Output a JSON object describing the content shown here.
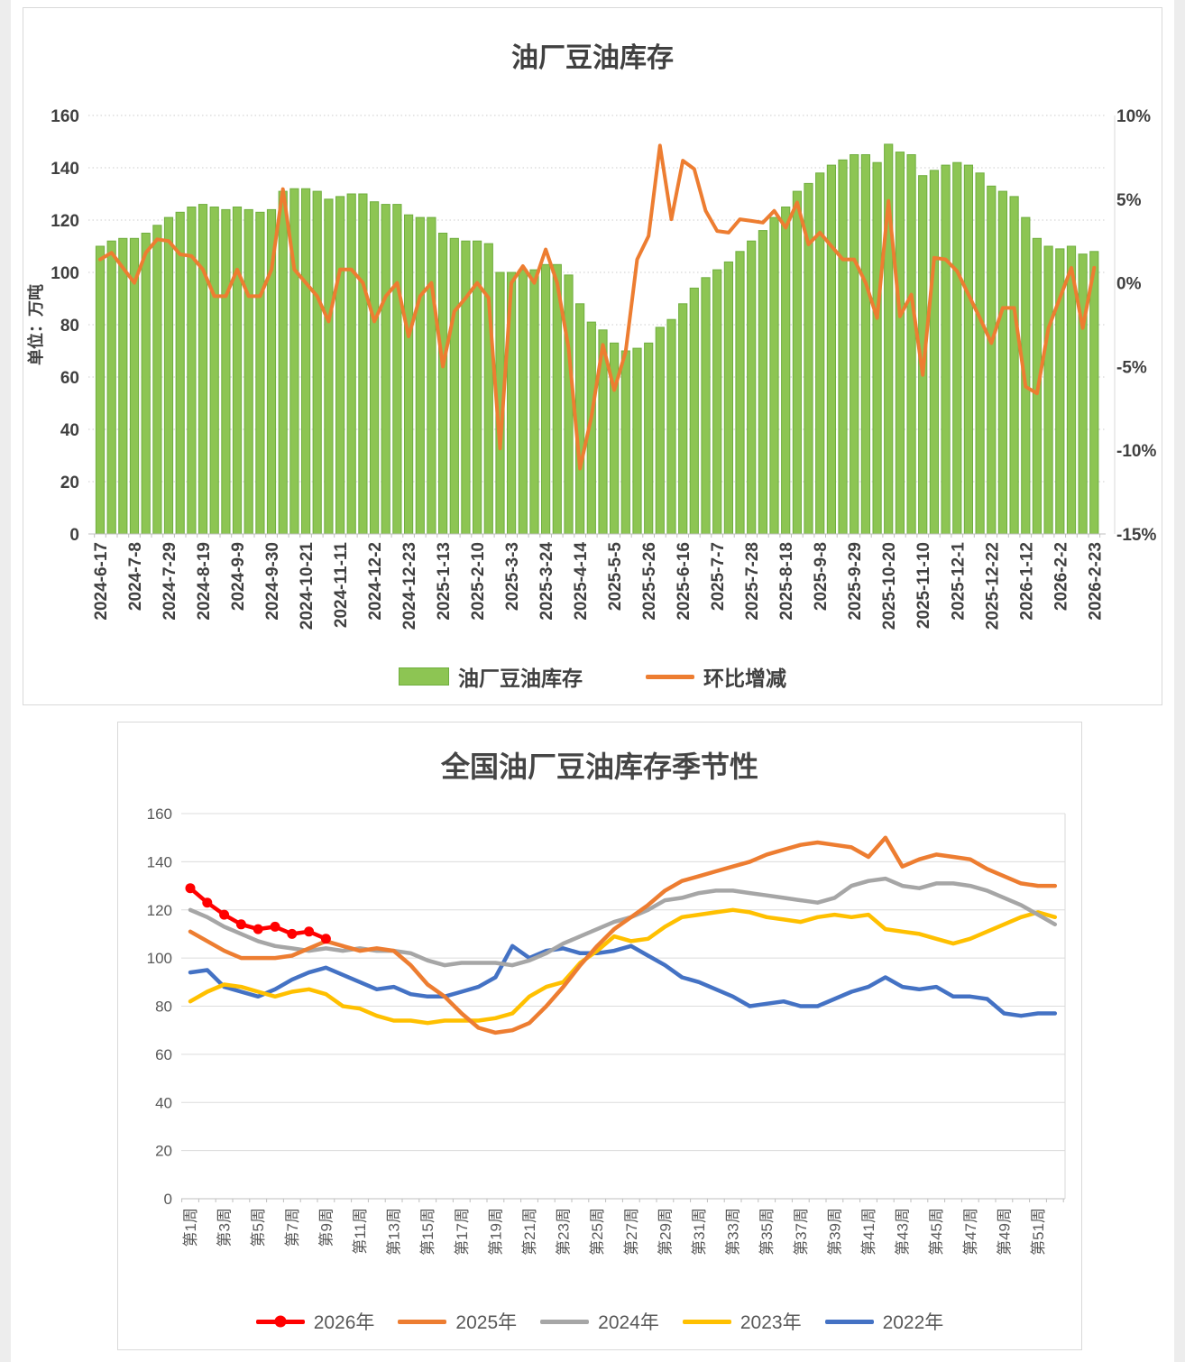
{
  "page": {
    "background": "#ffffff"
  },
  "chart_data": [
    {
      "type": "bar",
      "title": "油厂豆油库存",
      "ylabel": "单位：万吨",
      "ylim": [
        0,
        160
      ],
      "y_ticks": [
        0,
        20,
        40,
        60,
        80,
        100,
        120,
        140,
        160
      ],
      "y2lim": [
        -15,
        10
      ],
      "y2_ticks": [
        "10%",
        "5%",
        "0%",
        "-5%",
        "-10%",
        "-15%"
      ],
      "legend": [
        "油厂豆油库存",
        "环比增减"
      ],
      "bar_color": "#8DC553",
      "bar_edge": "#6FAE3E",
      "line_color": "#ED7D31",
      "grid": "dotted",
      "label_every": 3,
      "categories": [
        "2024-6-17",
        "2024-6-24",
        "2024-7-1",
        "2024-7-8",
        "2024-7-15",
        "2024-7-22",
        "2024-7-29",
        "2024-8-5",
        "2024-8-12",
        "2024-8-19",
        "2024-8-26",
        "2024-9-2",
        "2024-9-9",
        "2024-9-16",
        "2024-9-23",
        "2024-9-30",
        "2024-10-7",
        "2024-10-14",
        "2024-10-21",
        "2024-10-28",
        "2024-11-4",
        "2024-11-11",
        "2024-11-18",
        "2024-11-25",
        "2024-12-2",
        "2024-12-9",
        "2024-12-16",
        "2024-12-23",
        "2024-12-30",
        "2025-1-6",
        "2025-1-13",
        "2025-1-20",
        "2025-1-27",
        "2025-2-10",
        "2025-2-17",
        "2025-2-24",
        "2025-3-3",
        "2025-3-10",
        "2025-3-17",
        "2025-3-24",
        "2025-3-31",
        "2025-4-7",
        "2025-4-14",
        "2025-4-21",
        "2025-4-28",
        "2025-5-5",
        "2025-5-12",
        "2025-5-19",
        "2025-5-26",
        "2025-6-2",
        "2025-6-9",
        "2025-6-16",
        "2025-6-23",
        "2025-6-30",
        "2025-7-7",
        "2025-7-14",
        "2025-7-21",
        "2025-7-28",
        "2025-8-4",
        "2025-8-11",
        "2025-8-18",
        "2025-8-25",
        "2025-9-1",
        "2025-9-8",
        "2025-9-15",
        "2025-9-22",
        "2025-9-29",
        "2025-10-6",
        "2025-10-13",
        "2025-10-20",
        "2025-10-27",
        "2025-11-3",
        "2025-11-10",
        "2025-11-17",
        "2025-11-24",
        "2025-12-1",
        "2025-12-8",
        "2025-12-15",
        "2025-12-22",
        "2025-12-29",
        "2026-1-5",
        "2026-1-12",
        "2026-1-19",
        "2026-1-26",
        "2026-2-2",
        "2026-2-9",
        "2026-2-16",
        "2026-2-23"
      ],
      "bars": [
        110,
        112,
        113,
        113,
        115,
        118,
        121,
        123,
        125,
        126,
        125,
        124,
        125,
        124,
        123,
        124,
        131,
        132,
        132,
        131,
        128,
        129,
        130,
        130,
        127,
        126,
        126,
        122,
        121,
        121,
        115,
        113,
        112,
        112,
        111,
        100,
        100,
        101,
        101,
        103,
        103,
        99,
        88,
        81,
        78,
        73,
        70,
        71,
        73,
        79,
        82,
        88,
        94,
        98,
        101,
        104,
        108,
        112,
        116,
        121,
        125,
        131,
        134,
        138,
        141,
        143,
        145,
        145,
        142,
        149,
        146,
        145,
        137,
        139,
        141,
        142,
        141,
        138,
        133,
        131,
        129,
        121,
        113,
        110,
        109,
        110,
        107,
        108
      ],
      "pct_change": [
        1.4,
        1.8,
        0.9,
        0.0,
        1.8,
        2.6,
        2.5,
        1.7,
        1.6,
        0.8,
        -0.8,
        -0.8,
        0.8,
        -0.8,
        -0.8,
        0.8,
        5.6,
        0.8,
        0.0,
        -0.8,
        -2.3,
        0.8,
        0.8,
        0.0,
        -2.3,
        -0.8,
        0.0,
        -3.2,
        -0.8,
        0.0,
        -5.0,
        -1.7,
        -0.9,
        0.0,
        -0.9,
        -9.9,
        0.0,
        1.0,
        0.0,
        2.0,
        0.0,
        -3.9,
        -11.1,
        -8.0,
        -3.7,
        -6.4,
        -4.1,
        1.4,
        2.8,
        8.2,
        3.8,
        7.3,
        6.8,
        4.3,
        3.1,
        3.0,
        3.8,
        3.7,
        3.6,
        4.3,
        3.3,
        4.8,
        2.3,
        3.0,
        2.2,
        1.4,
        1.4,
        0.0,
        -2.1,
        4.9,
        -2.0,
        -0.7,
        -5.5,
        1.5,
        1.4,
        0.7,
        -0.7,
        -2.1,
        -3.6,
        -1.5,
        -1.5,
        -6.2,
        -6.6,
        -2.7,
        -0.9,
        0.9,
        -2.7,
        0.9
      ]
    },
    {
      "type": "line",
      "title": "全国油厂豆油库存季节性",
      "ylim": [
        0,
        160
      ],
      "y_ticks": [
        0,
        20,
        40,
        60,
        80,
        100,
        120,
        140,
        160
      ],
      "grid": "solid",
      "label_every": 2,
      "categories": [
        "第1周",
        "第2周",
        "第3周",
        "第4周",
        "第5周",
        "第6周",
        "第7周",
        "第8周",
        "第9周",
        "第10周",
        "第11周",
        "第12周",
        "第13周",
        "第14周",
        "第15周",
        "第16周",
        "第17周",
        "第18周",
        "第19周",
        "第20周",
        "第21周",
        "第22周",
        "第23周",
        "第24周",
        "第25周",
        "第26周",
        "第27周",
        "第28周",
        "第29周",
        "第30周",
        "第31周",
        "第32周",
        "第33周",
        "第34周",
        "第35周",
        "第36周",
        "第37周",
        "第38周",
        "第39周",
        "第40周",
        "第41周",
        "第42周",
        "第43周",
        "第44周",
        "第45周",
        "第46周",
        "第47周",
        "第48周",
        "第49周",
        "第50周",
        "第51周",
        "第52周"
      ],
      "series": [
        {
          "name": "2026年",
          "color": "#FF0000",
          "marker": true,
          "values": [
            129,
            123,
            118,
            114,
            112,
            113,
            110,
            111,
            108
          ]
        },
        {
          "name": "2025年",
          "color": "#ED7D31",
          "values": [
            111,
            107,
            103,
            100,
            100,
            100,
            101,
            104,
            107,
            105,
            103,
            104,
            103,
            97,
            89,
            84,
            77,
            71,
            69,
            70,
            73,
            80,
            88,
            97,
            105,
            112,
            117,
            122,
            128,
            132,
            134,
            136,
            138,
            140,
            143,
            145,
            147,
            148,
            147,
            146,
            142,
            150,
            138,
            141,
            143,
            142,
            141,
            137,
            134,
            131,
            130,
            130
          ]
        },
        {
          "name": "2024年",
          "color": "#A6A6A6",
          "values": [
            120,
            117,
            113,
            110,
            107,
            105,
            104,
            103,
            104,
            103,
            104,
            103,
            103,
            102,
            99,
            97,
            98,
            98,
            98,
            97,
            99,
            102,
            106,
            109,
            112,
            115,
            117,
            120,
            124,
            125,
            127,
            128,
            128,
            127,
            126,
            125,
            124,
            123,
            125,
            130,
            132,
            133,
            130,
            129,
            131,
            131,
            130,
            128,
            125,
            122,
            118,
            114
          ]
        },
        {
          "name": "2023年",
          "color": "#FFC000",
          "values": [
            82,
            86,
            89,
            88,
            86,
            84,
            86,
            87,
            85,
            80,
            79,
            76,
            74,
            74,
            73,
            74,
            74,
            74,
            75,
            77,
            84,
            88,
            90,
            98,
            103,
            109,
            107,
            108,
            113,
            117,
            118,
            119,
            120,
            119,
            117,
            116,
            115,
            117,
            118,
            117,
            118,
            112,
            111,
            110,
            108,
            106,
            108,
            111,
            114,
            117,
            119,
            117
          ]
        },
        {
          "name": "2022年",
          "color": "#4472C4",
          "values": [
            94,
            95,
            88,
            86,
            84,
            87,
            91,
            94,
            96,
            93,
            90,
            87,
            88,
            85,
            84,
            84,
            86,
            88,
            92,
            105,
            100,
            103,
            104,
            102,
            102,
            103,
            105,
            101,
            97,
            92,
            90,
            87,
            84,
            80,
            81,
            82,
            80,
            80,
            83,
            86,
            88,
            92,
            88,
            87,
            88,
            84,
            84,
            83,
            77,
            76,
            77,
            77
          ]
        }
      ]
    }
  ]
}
